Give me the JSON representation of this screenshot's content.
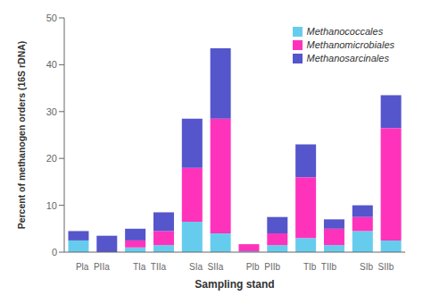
{
  "chart_data": {
    "type": "bar",
    "stacked": true,
    "categories": [
      "Pla  PIIa",
      null,
      "TIa  TIIa",
      null,
      "SIa  SIIa",
      null,
      "PIb  PIIb",
      null,
      "TIb  TIIb",
      null,
      "SIb  SIIb",
      null
    ],
    "series": [
      {
        "name": "Methanococcales",
        "color": "#66CCEE",
        "values": [
          2.5,
          0.0,
          1.0,
          1.5,
          6.5,
          4.0,
          0.2,
          1.5,
          3.0,
          1.5,
          4.5,
          2.5
        ]
      },
      {
        "name": "Methanomicrobiales",
        "color": "#FF33BB",
        "values": [
          0.0,
          0.0,
          1.5,
          3.0,
          11.5,
          24.5,
          1.5,
          2.5,
          13.0,
          3.5,
          3.0,
          24.0
        ]
      },
      {
        "name": "Methanosarcinales",
        "color": "#5555CC",
        "values": [
          2.0,
          3.5,
          2.5,
          4.0,
          10.5,
          15.0,
          0.0,
          3.5,
          7.0,
          2.0,
          2.5,
          7.0
        ]
      }
    ],
    "xlabel": "Sampling stand",
    "ylabel": "Percent of methanogen orders (16S rDNA)",
    "ylim": [
      0,
      50
    ],
    "yticks": [
      0,
      10,
      20,
      30,
      40,
      50
    ],
    "grid": false,
    "legend": "upper right"
  }
}
